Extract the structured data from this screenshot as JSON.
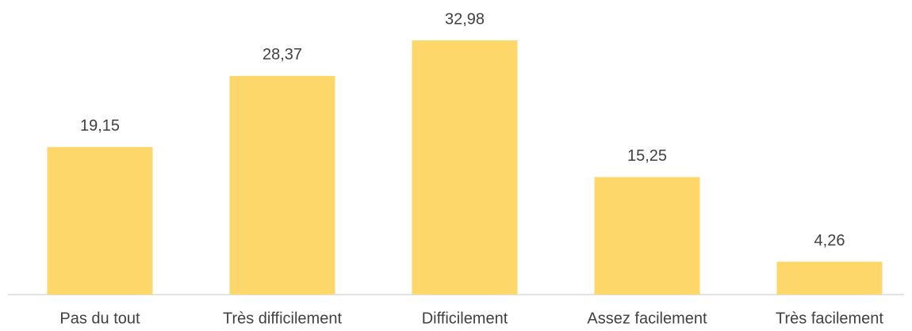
{
  "chart_data": {
    "type": "bar",
    "categories": [
      "Pas du tout",
      "Très difficilement",
      "Difficilement",
      "Assez facilement",
      "Très facilement"
    ],
    "values": [
      19.15,
      28.37,
      32.98,
      15.25,
      4.26
    ],
    "value_labels": [
      "19,15",
      "28,37",
      "32,98",
      "15,25",
      "4,26"
    ],
    "color": "#fdd76a"
  }
}
